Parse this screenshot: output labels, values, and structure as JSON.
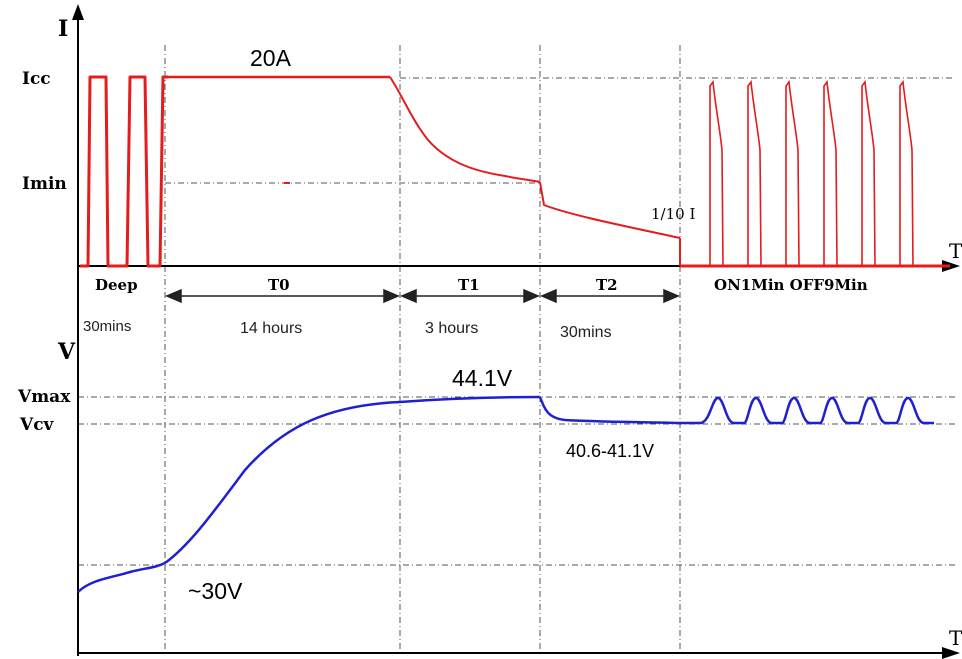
{
  "axes": {
    "current_axis_label": "I",
    "voltage_axis_label": "V",
    "time_axis_label_top": "T",
    "time_axis_label_bottom": "T"
  },
  "current_levels": {
    "icc_label": "Icc",
    "imin_label": "Imin"
  },
  "voltage_levels": {
    "vmax_label": "Vmax",
    "vcv_label": "Vcv"
  },
  "stages": [
    {
      "name": "Deep",
      "duration": "30mins"
    },
    {
      "name": "T0",
      "duration": "14 hours"
    },
    {
      "name": "T1",
      "duration": "3 hours"
    },
    {
      "name": "T2",
      "duration": "30mins"
    },
    {
      "name": "ON1Min OFF9Min",
      "duration": ""
    }
  ],
  "annotations": {
    "current_value": "20A",
    "tail_current": "1/10 I",
    "voltage_max": "44.1V",
    "voltage_float": "40.6-41.1V",
    "voltage_start": "~30V"
  },
  "colors": {
    "current_curve": "#e41c1c",
    "voltage_curve": "#2020d0",
    "axis": "#000000",
    "guide": "#555555"
  }
}
